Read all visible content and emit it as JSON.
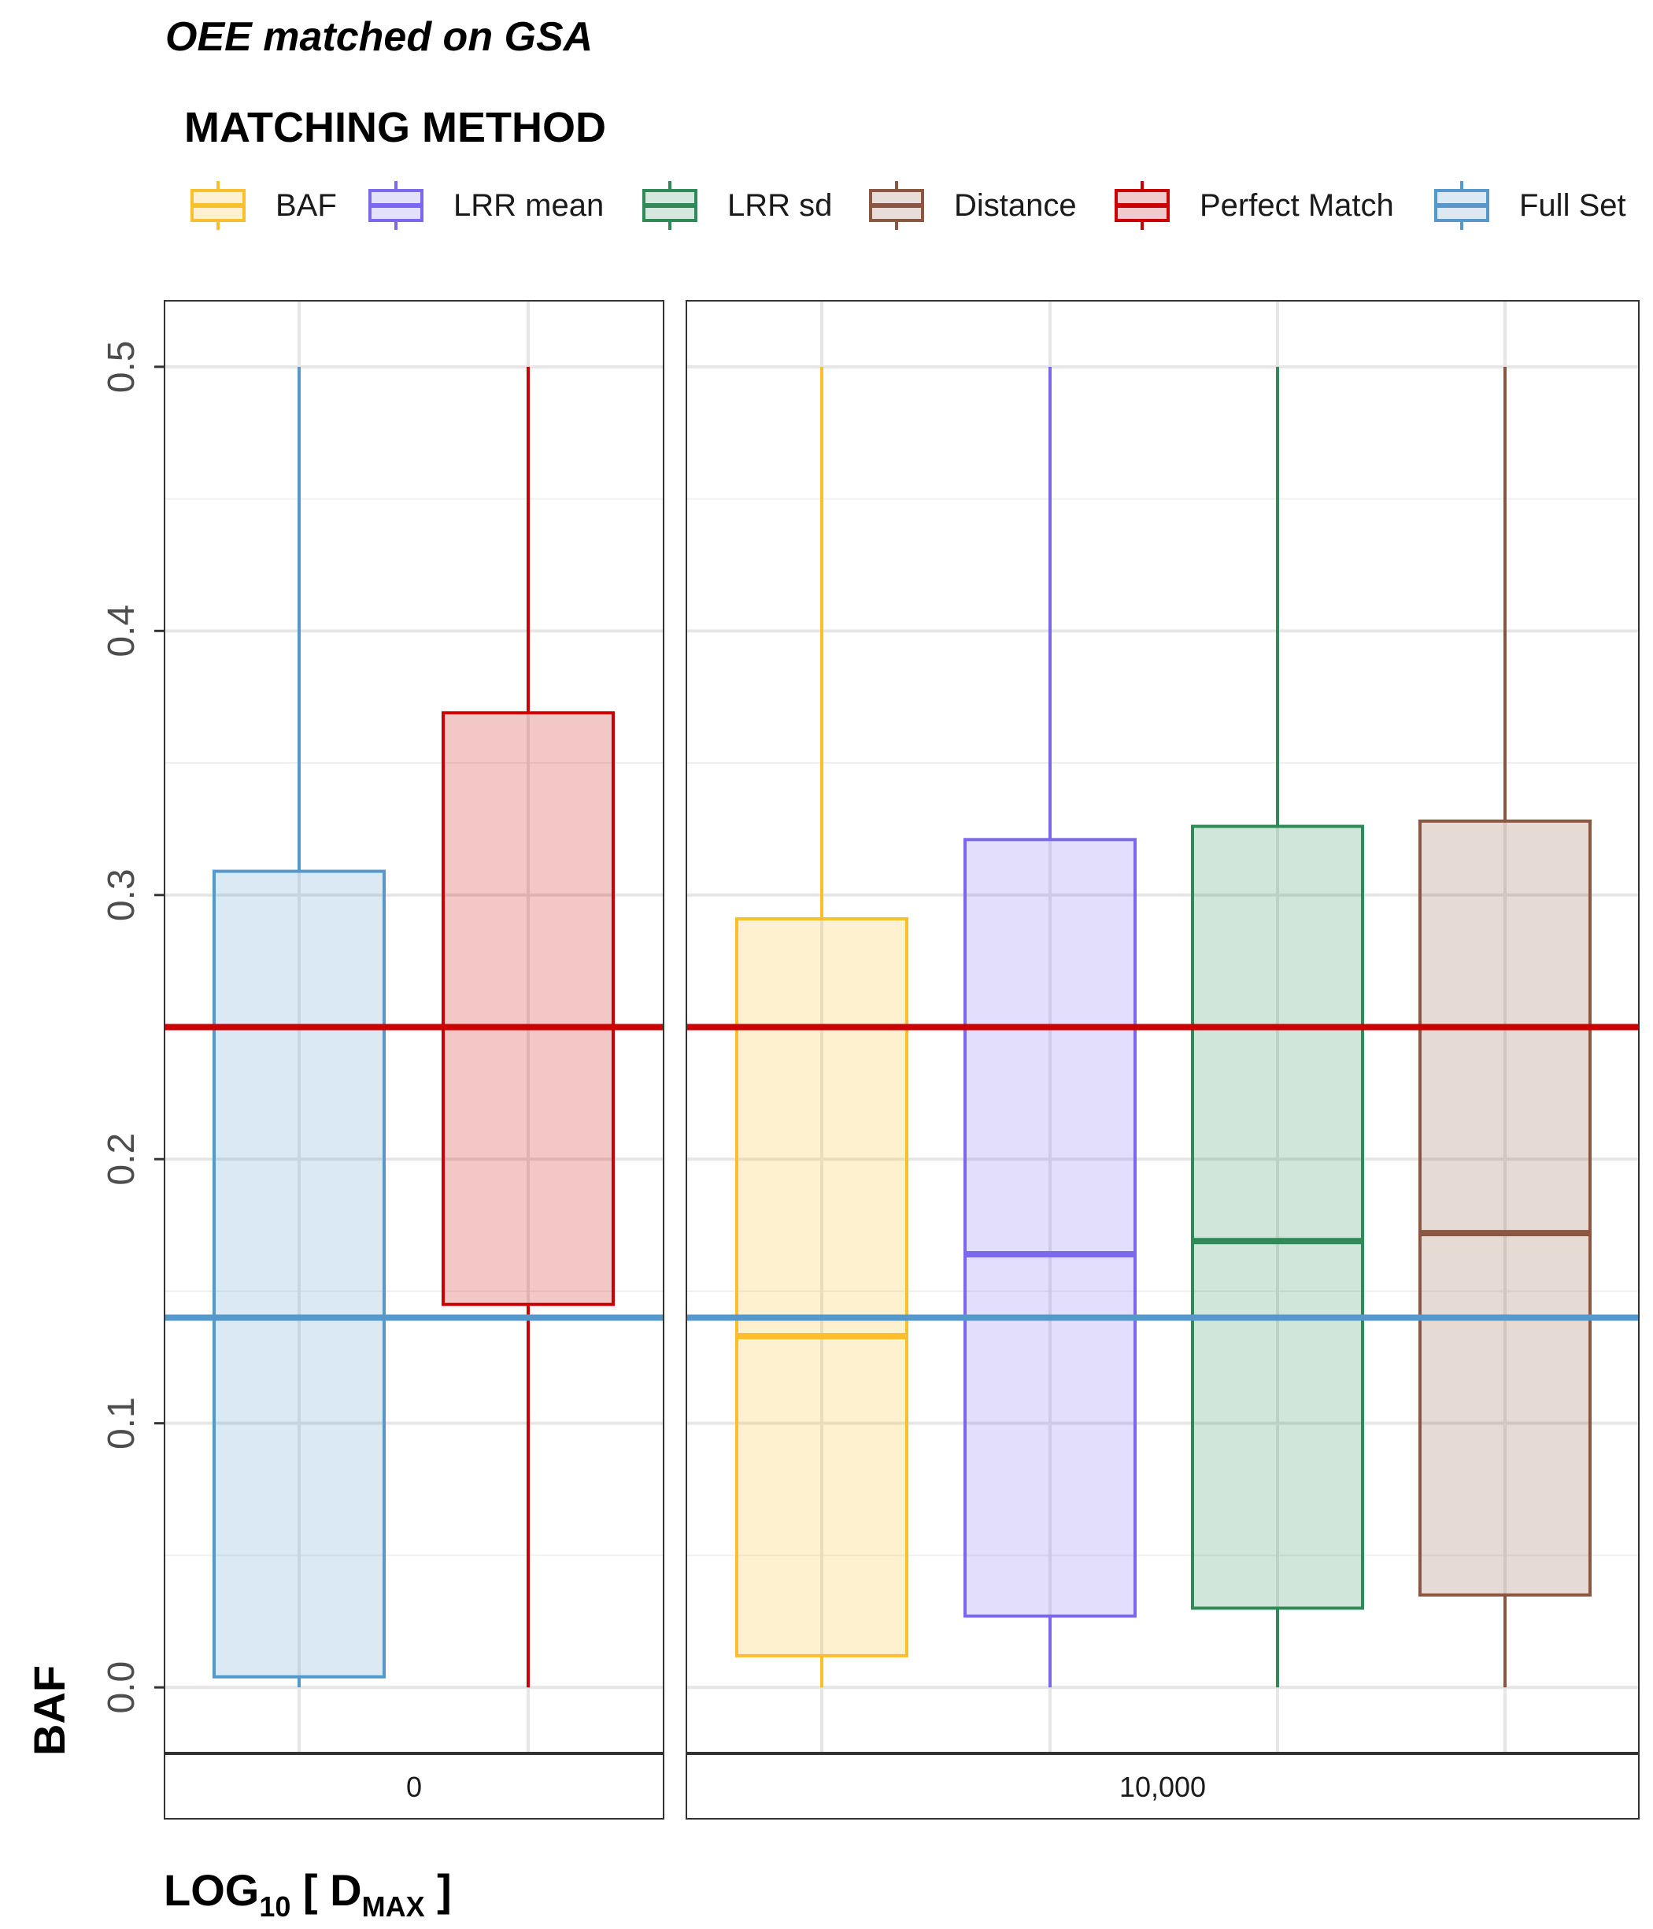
{
  "chart_data": {
    "type": "boxplot",
    "title": "OEE matched on GSA",
    "legend_title": "MATCHING METHOD",
    "legend_position": "top",
    "ylabel": "BAF",
    "xlabel_parts": {
      "base": "LOG",
      "base_sub": "10",
      "open": " [ D",
      "var_sub": "MAX",
      "close": " ]"
    },
    "ylim": [
      -0.025,
      0.525
    ],
    "y_ticks": [
      0.0,
      0.1,
      0.2,
      0.3,
      0.4,
      0.5
    ],
    "y_tick_labels": [
      "0.0",
      "0.1",
      "0.2",
      "0.3",
      "0.4",
      "0.5"
    ],
    "grid": true,
    "series": [
      {
        "name": "BAF",
        "color": "#FBBF2B",
        "fill": "#FEF1D1"
      },
      {
        "name": "LRR mean",
        "color": "#7B68EE",
        "fill": "#E3E0FC"
      },
      {
        "name": "LRR sd",
        "color": "#2E8B57",
        "fill": "#D5E8DE"
      },
      {
        "name": "Distance",
        "color": "#8B5742",
        "fill": "#E8DDD9"
      },
      {
        "name": "Perfect Match",
        "color": "#CC0000",
        "fill": "#F3CACB"
      },
      {
        "name": "Full Set",
        "color": "#5599CC",
        "fill": "#DCE9F4"
      }
    ],
    "reference_lines": [
      {
        "series": "Perfect Match",
        "y": 0.25
      },
      {
        "series": "Full Set",
        "y": 0.14
      }
    ],
    "panels": [
      {
        "strip_label": "0",
        "boxes": [
          {
            "series": "Full Set",
            "min": 0.0,
            "q1": 0.004,
            "median": 0.14,
            "q3": 0.309,
            "max": 0.5
          },
          {
            "series": "Perfect Match",
            "min": 0.0,
            "q1": 0.145,
            "median": 0.25,
            "q3": 0.369,
            "max": 0.5
          }
        ]
      },
      {
        "strip_label": "10,000",
        "boxes": [
          {
            "series": "BAF",
            "min": 0.0,
            "q1": 0.012,
            "median": 0.133,
            "q3": 0.291,
            "max": 0.5
          },
          {
            "series": "LRR mean",
            "min": 0.0,
            "q1": 0.027,
            "median": 0.164,
            "q3": 0.321,
            "max": 0.5
          },
          {
            "series": "LRR sd",
            "min": 0.0,
            "q1": 0.03,
            "median": 0.169,
            "q3": 0.326,
            "max": 0.5
          },
          {
            "series": "Distance",
            "min": 0.0,
            "q1": 0.035,
            "median": 0.172,
            "q3": 0.328,
            "max": 0.5
          }
        ]
      }
    ]
  }
}
